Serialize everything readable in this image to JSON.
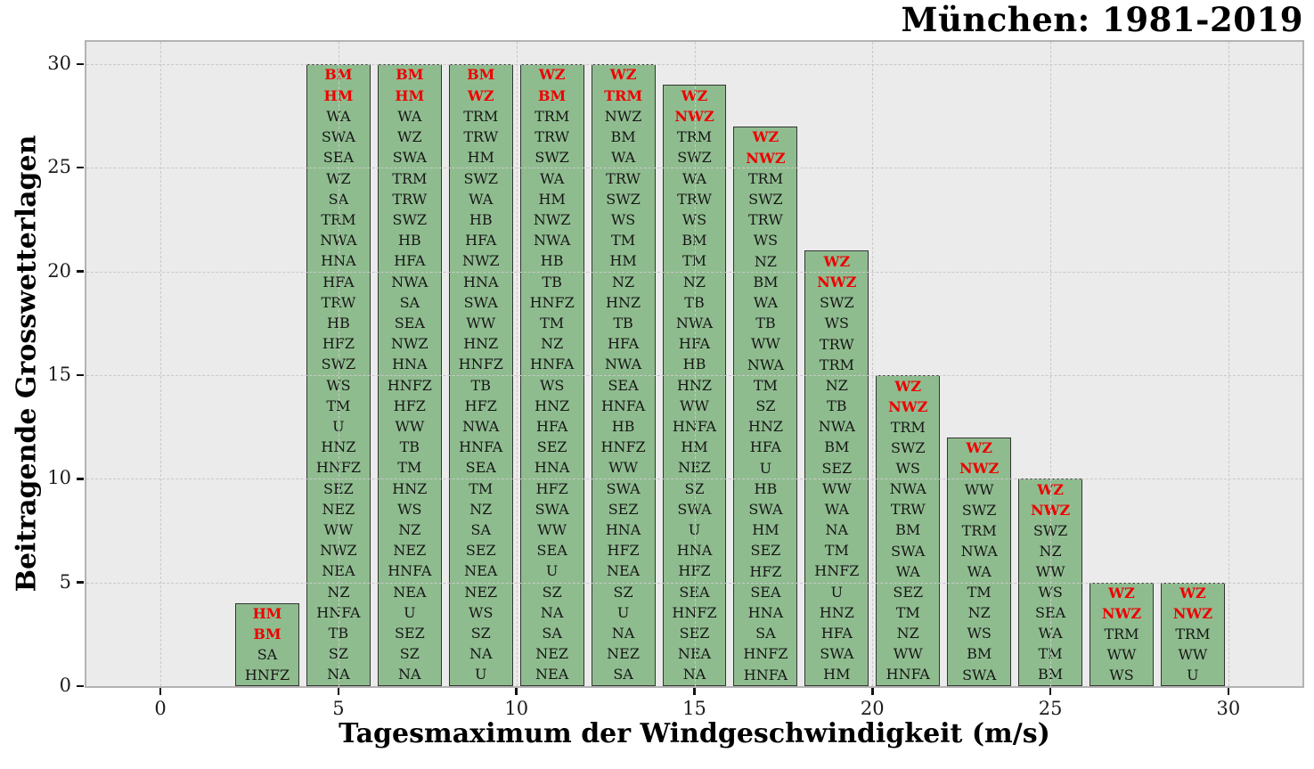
{
  "chart_data": {
    "type": "bar",
    "title": "München: 1981-2019",
    "xlabel": "Tagesmaximum der Windgeschwindigkeit (m/s)",
    "ylabel": "Beitragende Grosswetterlagen",
    "xlim": [
      -2.08,
      32.08
    ],
    "ylim": [
      0,
      31.07
    ],
    "x_ticks": [
      0,
      5,
      10,
      15,
      20,
      25,
      30
    ],
    "y_ticks": [
      0,
      5,
      10,
      15,
      20,
      25,
      30
    ],
    "grid": "dashed",
    "legend": "none",
    "bar_width": 1.8,
    "bar_fill": "#8fbc8f",
    "bar_edge": "#333333",
    "label_color": "#161616",
    "highlight_color": "#ee0000",
    "highlight_top_n": 2,
    "plot_bg": "#ebebeb",
    "grid_color": "#c9c9c9",
    "categories": [
      3,
      5,
      7,
      9,
      11,
      13,
      15,
      17,
      19,
      21,
      23,
      25,
      27,
      29
    ],
    "values": [
      4,
      30,
      30,
      30,
      30,
      30,
      29,
      27,
      21,
      15,
      12,
      10,
      5,
      5
    ],
    "bars": [
      {
        "x": 3,
        "value": 4,
        "labels": [
          "HM",
          "BM",
          "SA",
          "HNFZ"
        ]
      },
      {
        "x": 5,
        "value": 30,
        "labels": [
          "BM",
          "HM",
          "WA",
          "SWA",
          "SEA",
          "WZ",
          "SA",
          "TRM",
          "NWA",
          "HNA",
          "HFA",
          "TRW",
          "HB",
          "HFZ",
          "SWZ",
          "WS",
          "TM",
          "U",
          "HNZ",
          "HNFZ",
          "SEZ",
          "NEZ",
          "WW",
          "NWZ",
          "NEA",
          "NZ",
          "HNFA",
          "TB",
          "SZ",
          "NA"
        ]
      },
      {
        "x": 7,
        "value": 30,
        "labels": [
          "BM",
          "HM",
          "WA",
          "WZ",
          "SWA",
          "TRM",
          "TRW",
          "SWZ",
          "HB",
          "HFA",
          "NWA",
          "SA",
          "SEA",
          "NWZ",
          "HNA",
          "HNFZ",
          "HFZ",
          "WW",
          "TB",
          "TM",
          "HNZ",
          "WS",
          "NZ",
          "NEZ",
          "HNFA",
          "NEA",
          "U",
          "SEZ",
          "SZ",
          "NA"
        ]
      },
      {
        "x": 9,
        "value": 30,
        "labels": [
          "BM",
          "WZ",
          "TRM",
          "TRW",
          "HM",
          "SWZ",
          "WA",
          "HB",
          "HFA",
          "NWZ",
          "HNA",
          "SWA",
          "WW",
          "HNZ",
          "HNFZ",
          "TB",
          "HFZ",
          "NWA",
          "HNFA",
          "SEA",
          "TM",
          "NZ",
          "SA",
          "SEZ",
          "NEA",
          "NEZ",
          "WS",
          "SZ",
          "NA",
          "U"
        ]
      },
      {
        "x": 11,
        "value": 30,
        "labels": [
          "WZ",
          "BM",
          "TRM",
          "TRW",
          "SWZ",
          "WA",
          "HM",
          "NWZ",
          "NWA",
          "HB",
          "TB",
          "HNFZ",
          "TM",
          "NZ",
          "HNFA",
          "WS",
          "HNZ",
          "HFA",
          "SEZ",
          "HNA",
          "HFZ",
          "SWA",
          "WW",
          "SEA",
          "U",
          "SZ",
          "NA",
          "SA",
          "NEZ",
          "NEA"
        ]
      },
      {
        "x": 13,
        "value": 30,
        "labels": [
          "WZ",
          "TRM",
          "NWZ",
          "BM",
          "WA",
          "TRW",
          "SWZ",
          "WS",
          "TM",
          "HM",
          "NZ",
          "HNZ",
          "TB",
          "HFA",
          "NWA",
          "SEA",
          "HNFA",
          "HB",
          "HNFZ",
          "WW",
          "SWA",
          "SEZ",
          "HNA",
          "HFZ",
          "NEA",
          "SZ",
          "U",
          "NA",
          "NEZ",
          "SA"
        ]
      },
      {
        "x": 15,
        "value": 29,
        "labels": [
          "WZ",
          "NWZ",
          "TRM",
          "SWZ",
          "WA",
          "TRW",
          "WS",
          "BM",
          "TM",
          "NZ",
          "TB",
          "NWA",
          "HFA",
          "HB",
          "HNZ",
          "WW",
          "HNFA",
          "HM",
          "NEZ",
          "SZ",
          "SWA",
          "U",
          "HNA",
          "HFZ",
          "SEA",
          "HNFZ",
          "SEZ",
          "NEA",
          "NA"
        ]
      },
      {
        "x": 17,
        "value": 27,
        "labels": [
          "WZ",
          "NWZ",
          "TRM",
          "SWZ",
          "TRW",
          "WS",
          "NZ",
          "BM",
          "WA",
          "TB",
          "WW",
          "NWA",
          "TM",
          "SZ",
          "HNZ",
          "HFA",
          "U",
          "HB",
          "SWA",
          "HM",
          "SEZ",
          "HFZ",
          "SEA",
          "HNA",
          "SA",
          "HNFZ",
          "HNFA"
        ]
      },
      {
        "x": 19,
        "value": 21,
        "labels": [
          "WZ",
          "NWZ",
          "SWZ",
          "WS",
          "TRW",
          "TRM",
          "NZ",
          "TB",
          "NWA",
          "BM",
          "SEZ",
          "WW",
          "WA",
          "NA",
          "TM",
          "HNFZ",
          "U",
          "HNZ",
          "HFA",
          "SWA",
          "HM"
        ]
      },
      {
        "x": 21,
        "value": 15,
        "labels": [
          "WZ",
          "NWZ",
          "TRM",
          "SWZ",
          "WS",
          "NWA",
          "TRW",
          "BM",
          "SWA",
          "WA",
          "SEZ",
          "TM",
          "NZ",
          "WW",
          "HNFA"
        ]
      },
      {
        "x": 23,
        "value": 12,
        "labels": [
          "WZ",
          "NWZ",
          "WW",
          "SWZ",
          "TRM",
          "NWA",
          "WA",
          "TM",
          "NZ",
          "WS",
          "BM",
          "SWA"
        ]
      },
      {
        "x": 25,
        "value": 10,
        "labels": [
          "WZ",
          "NWZ",
          "SWZ",
          "NZ",
          "WW",
          "WS",
          "SEA",
          "WA",
          "TM",
          "BM"
        ]
      },
      {
        "x": 27,
        "value": 5,
        "labels": [
          "WZ",
          "NWZ",
          "TRM",
          "WW",
          "WS"
        ]
      },
      {
        "x": 29,
        "value": 5,
        "labels": [
          "WZ",
          "NWZ",
          "TRM",
          "WW",
          "U"
        ]
      }
    ]
  }
}
